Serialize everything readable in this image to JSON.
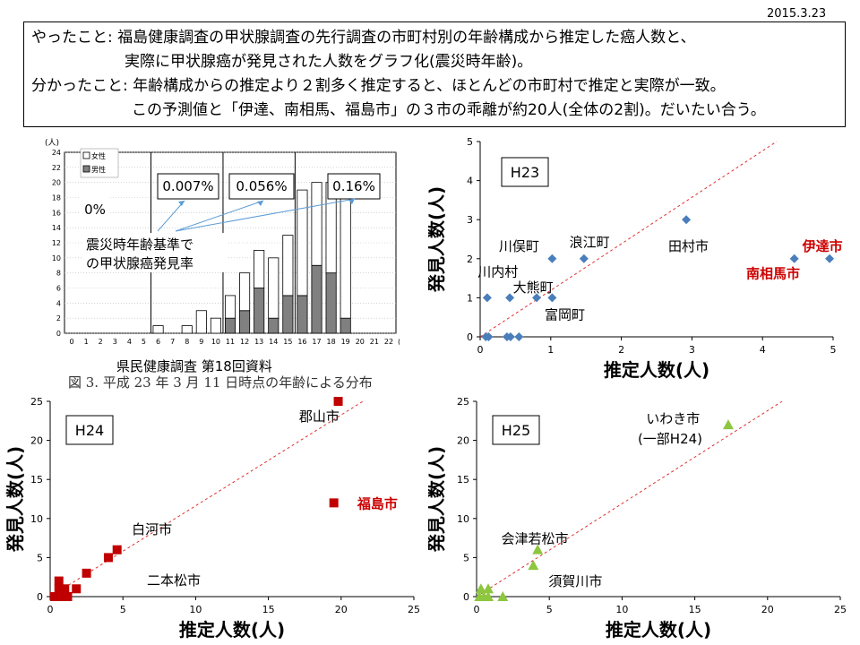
{
  "date": "2015.3.23",
  "summary": {
    "line1": "やったこと: 福島健康調査の甲状腺調査の先行調査の市町村別の年齢構成から推定した癌人数と、",
    "line2": "実際に甲状腺癌が発見された人数をグラフ化(震災時年齢)。",
    "line3": "分かったこと: 年齢構成からの推定より２割多く推定すると、ほとんどの市町村で推定と実際が一致。",
    "line4": "この予測値と「伊達、南相馬、福島市」の３市の乖離が約20人(全体の2割)。だいたい合う。"
  },
  "histogram": {
    "source": "県民健康調査  第18回資料",
    "caption": "図 3. 平成 23 年 3 月 11 日時点の年齢による分布",
    "y_unit": "(人)",
    "x_unit": "(歳)",
    "legend_female": "女性",
    "legend_male": "男性",
    "annotation_text1": "震災時年齢基準で",
    "annotation_text2": "の甲状腺癌発見率",
    "rate_labels": [
      "0%",
      "0.007%",
      "0.056%",
      "0.16%"
    ],
    "female_color": "#ffffff",
    "male_color": "#808080"
  },
  "chart_data": [
    {
      "type": "bar",
      "categories": [
        "0",
        "1",
        "2",
        "3",
        "4",
        "5",
        "6",
        "7",
        "8",
        "9",
        "10",
        "11",
        "12",
        "13",
        "14",
        "15",
        "16",
        "17",
        "18",
        "19",
        "20",
        "21",
        "22"
      ],
      "series": [
        {
          "name": "男性",
          "values": [
            0,
            0,
            0,
            0,
            0,
            0,
            0,
            0,
            0,
            0,
            0,
            2,
            3,
            6,
            2,
            5,
            5,
            9,
            8,
            2,
            0,
            0,
            0
          ]
        },
        {
          "name": "女性",
          "values": [
            0,
            0,
            0,
            0,
            0,
            0,
            1,
            0,
            1,
            3,
            2,
            3,
            5,
            5,
            8,
            8,
            14,
            11,
            12,
            16,
            0,
            0,
            0
          ]
        }
      ],
      "ylim": [
        0,
        24
      ],
      "yticks": [
        0,
        2,
        4,
        6,
        8,
        10,
        12,
        14,
        16,
        18,
        20,
        22,
        24
      ]
    },
    {
      "type": "scatter",
      "title": "H23",
      "xlabel": "推定人数(人)",
      "ylabel": "発見人数(人)",
      "xlim": [
        0,
        5
      ],
      "ylim": [
        0,
        5
      ],
      "xticks": [
        0,
        1,
        2,
        3,
        4,
        5
      ],
      "yticks": [
        0,
        1,
        2,
        3,
        4,
        5
      ],
      "marker_color": "#4a7ebb",
      "trend": [
        [
          0,
          0
        ],
        [
          4.2,
          5
        ]
      ],
      "points": [
        {
          "x": 0.08,
          "y": 0
        },
        {
          "x": 0.12,
          "y": 0
        },
        {
          "x": 0.38,
          "y": 0
        },
        {
          "x": 0.43,
          "y": 0
        },
        {
          "x": 0.55,
          "y": 0
        },
        {
          "x": 0.1,
          "y": 1
        },
        {
          "x": 0.42,
          "y": 1
        },
        {
          "x": 0.8,
          "y": 1
        },
        {
          "x": 1.02,
          "y": 1
        },
        {
          "x": 1.02,
          "y": 2
        },
        {
          "x": 1.47,
          "y": 2
        },
        {
          "x": 2.92,
          "y": 3
        },
        {
          "x": 4.45,
          "y": 2
        },
        {
          "x": 4.95,
          "y": 2
        }
      ],
      "labels": [
        {
          "text": "川俣町",
          "x": 0.55,
          "y": 2.2,
          "color": "#000000"
        },
        {
          "text": "浪江町",
          "x": 1.55,
          "y": 2.3,
          "color": "#000000"
        },
        {
          "text": "田村市",
          "x": 2.95,
          "y": 2.2,
          "color": "#000000"
        },
        {
          "text": "伊達市",
          "x": 4.85,
          "y": 2.2,
          "color": "#cc0000"
        },
        {
          "text": "南相馬市",
          "x": 4.15,
          "y": 1.5,
          "color": "#cc0000"
        },
        {
          "text": "川内村",
          "x": 0.25,
          "y": 1.55,
          "color": "#000000"
        },
        {
          "text": "大熊町",
          "x": 0.75,
          "y": 1.15,
          "color": "#000000"
        },
        {
          "text": "富岡町",
          "x": 1.2,
          "y": 0.45,
          "color": "#000000"
        }
      ]
    },
    {
      "type": "scatter",
      "title": "H24",
      "xlabel": "推定人数(人)",
      "ylabel": "発見人数(人)",
      "xlim": [
        0,
        25
      ],
      "ylim": [
        0,
        25
      ],
      "xticks": [
        0,
        5,
        10,
        15,
        20,
        25
      ],
      "yticks": [
        0,
        5,
        10,
        15,
        20,
        25
      ],
      "marker_color": "#c00000",
      "trend": [
        [
          0,
          0
        ],
        [
          21.5,
          25
        ]
      ],
      "points": [
        {
          "x": 0.3,
          "y": 0
        },
        {
          "x": 0.5,
          "y": 0
        },
        {
          "x": 0.8,
          "y": 0
        },
        {
          "x": 1.2,
          "y": 0
        },
        {
          "x": 0.6,
          "y": 1
        },
        {
          "x": 1.0,
          "y": 1
        },
        {
          "x": 1.8,
          "y": 1
        },
        {
          "x": 0.6,
          "y": 2
        },
        {
          "x": 2.5,
          "y": 3
        },
        {
          "x": 4.0,
          "y": 5
        },
        {
          "x": 4.6,
          "y": 6
        },
        {
          "x": 19.8,
          "y": 25
        },
        {
          "x": 19.5,
          "y": 12
        }
      ],
      "labels": [
        {
          "text": "郡山市",
          "x": 18.5,
          "y": 22.5,
          "color": "#000000"
        },
        {
          "text": "福島市",
          "x": 22.5,
          "y": 11.3,
          "color": "#cc0000"
        },
        {
          "text": "白河市",
          "x": 7.0,
          "y": 8.0,
          "color": "#000000"
        },
        {
          "text": "二本松市",
          "x": 8.5,
          "y": 1.5,
          "color": "#000000"
        }
      ]
    },
    {
      "type": "scatter",
      "title": "H25",
      "xlabel": "推定人数(人)",
      "ylabel": "発見人数(人)",
      "xlim": [
        0,
        25
      ],
      "ylim": [
        0,
        25
      ],
      "xticks": [
        0,
        5,
        10,
        15,
        20,
        25
      ],
      "yticks": [
        0,
        5,
        10,
        15,
        20,
        25
      ],
      "marker_color": "#8dc63f",
      "trend": [
        [
          0,
          0
        ],
        [
          21,
          25
        ]
      ],
      "points": [
        {
          "x": 0.2,
          "y": 0
        },
        {
          "x": 0.5,
          "y": 0
        },
        {
          "x": 0.8,
          "y": 0
        },
        {
          "x": 0.3,
          "y": 1
        },
        {
          "x": 0.8,
          "y": 1
        },
        {
          "x": 1.8,
          "y": 0
        },
        {
          "x": 3.9,
          "y": 4
        },
        {
          "x": 4.2,
          "y": 6
        },
        {
          "x": 17.3,
          "y": 22
        }
      ],
      "labels": [
        {
          "text": "いわき市",
          "x": 13.5,
          "y": 22.2,
          "color": "#000000"
        },
        {
          "text": "(一部H24)",
          "x": 13.3,
          "y": 19.6,
          "color": "#000000"
        },
        {
          "text": "会津若松市",
          "x": 4.0,
          "y": 6.8,
          "color": "#000000"
        },
        {
          "text": "須賀川市",
          "x": 6.8,
          "y": 1.4,
          "color": "#000000"
        }
      ]
    }
  ]
}
